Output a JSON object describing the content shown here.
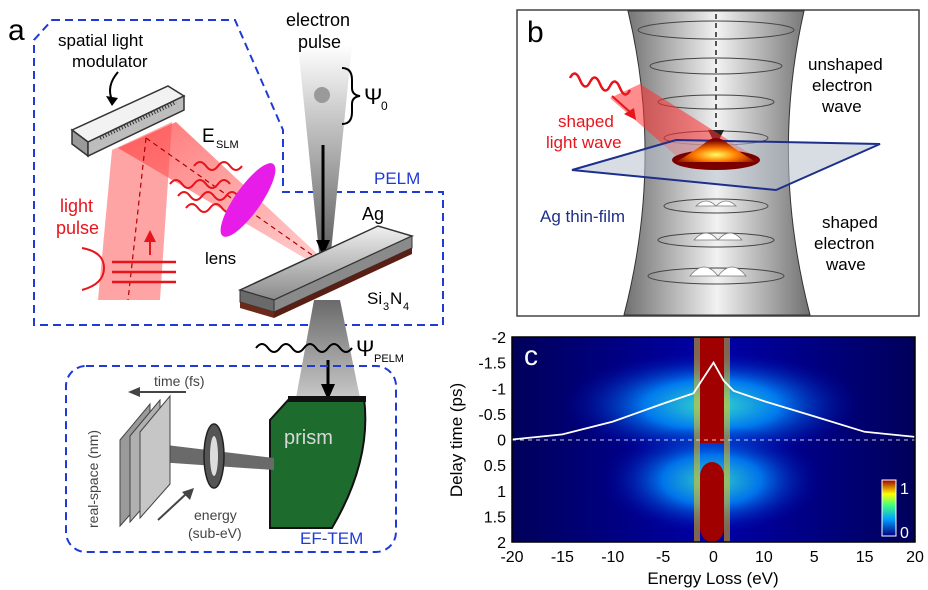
{
  "panel_a": {
    "letter": "a",
    "electron_pulse_line1": "electron",
    "electron_pulse_line2": "pulse",
    "psi0": "Ψ",
    "psi0_sub": "0",
    "slm_line1": "spatial light",
    "slm_line2": "modulator",
    "eslm": "E",
    "eslm_sub": "SLM",
    "pelm": "PELM",
    "light_pulse_line1": "light",
    "light_pulse_line2": "pulse",
    "lens": "lens",
    "ag": "Ag",
    "si3n4_a": "Si",
    "si3n4_b": "3",
    "si3n4_c": "N",
    "si3n4_d": "4",
    "psi_pelm": "Ψ",
    "psi_pelm_sub": "PELM",
    "time": "time (fs)",
    "real_space": "real-space (nm)",
    "energy_line1": "energy",
    "energy_line2": "(sub-eV)",
    "prism": "prism",
    "ef_tem": "EF-TEM"
  },
  "panel_b": {
    "letter": "b",
    "unshaped_line1": "unshaped",
    "unshaped_line2": "electron",
    "unshaped_line3": "wave",
    "shaped_light_line1": "shaped",
    "shaped_light_line2": "light wave",
    "ag_thin_film": "Ag thin-film",
    "shaped_e_line1": "shaped",
    "shaped_e_line2": "electron",
    "shaped_e_line3": "wave"
  },
  "panel_c": {
    "letter": "c",
    "ylabel": "Delay time (ps)",
    "xlabel": "Energy Loss (eV)",
    "yticks": [
      "-2",
      "-1.5",
      "-1",
      "-0.5",
      "0",
      "0.5",
      "1",
      "1.5",
      "2"
    ],
    "xticks": [
      "-20",
      "-15",
      "-10",
      "-5",
      "0",
      "10",
      "5",
      "15",
      "20"
    ],
    "colorbar_max": "1",
    "colorbar_min": "0"
  },
  "colors": {
    "dashed_box": "#1f3bd6",
    "light_red": "#e8141c",
    "lens": "#e81ce8",
    "prism": "#1e6b2e",
    "film_blue": "#1c2f8c"
  },
  "chart_data": {
    "type": "heatmap",
    "xlabel": "Energy Loss (eV)",
    "ylabel": "Delay time (ps)",
    "xlim": [
      -20,
      20
    ],
    "ylim": [
      -2,
      2
    ],
    "x_tick_labels": [
      "-20",
      "-15",
      "-10",
      "-5",
      "0",
      "10",
      "5",
      "15",
      "20"
    ],
    "y_tick_labels": [
      "-2",
      "-1.5",
      "-1",
      "-0.5",
      "0",
      "0.5",
      "1",
      "1.5",
      "2"
    ],
    "colorbar": {
      "min": 0,
      "max": 1
    },
    "overlay_profile": {
      "x": [
        -20,
        -15,
        -10,
        -5,
        -2,
        -1,
        0,
        1,
        2,
        5,
        10,
        15,
        20
      ],
      "y": [
        0.0,
        -0.1,
        -0.35,
        -0.7,
        -0.9,
        -1.2,
        -1.5,
        -1.15,
        -0.95,
        -0.75,
        -0.45,
        -0.15,
        -0.05
      ]
    }
  }
}
